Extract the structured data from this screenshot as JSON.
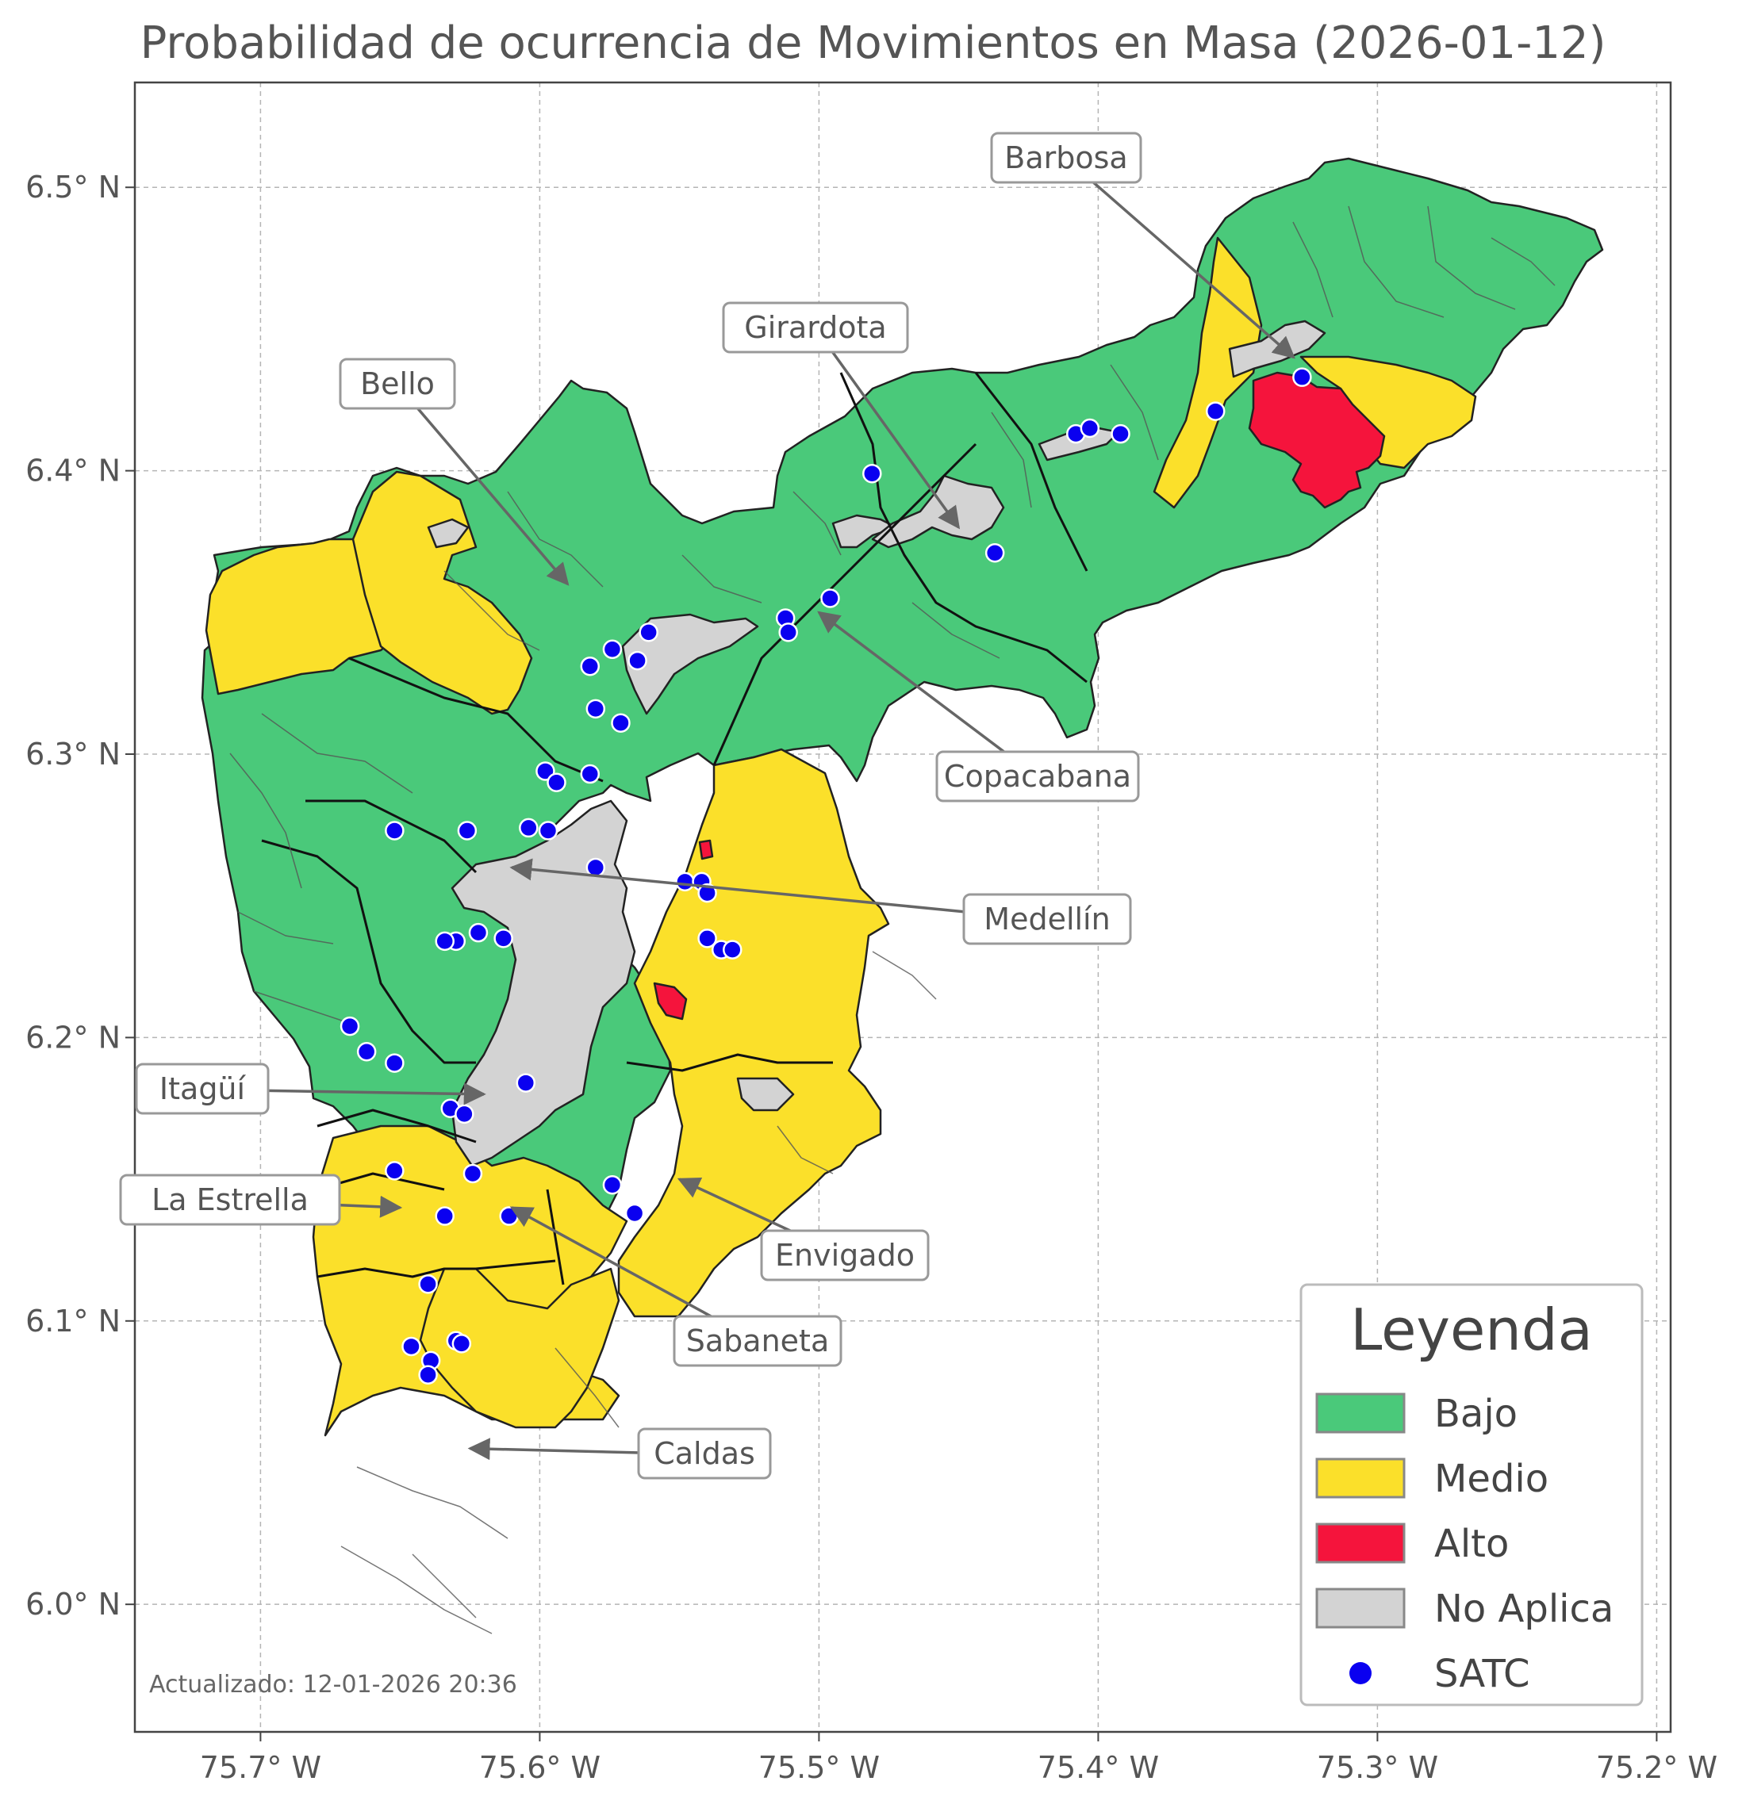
{
  "title": "Probabilidad de ocurrencia de Movimientos en Masa (2026-01-12)",
  "axes": {
    "x_ticks": [
      "75.7° W",
      "75.6° W",
      "75.5° W",
      "75.4° W",
      "75.3° W",
      "75.2° W"
    ],
    "y_ticks": [
      "6.5° N",
      "6.4° N",
      "6.3° N",
      "6.2° N",
      "6.1° N",
      "6.0° N"
    ],
    "lon_range": [
      -75.745,
      -75.195
    ],
    "lat_range": [
      5.955,
      6.537
    ],
    "grid": true
  },
  "municipalities": [
    {
      "name": "Barbosa",
      "lon": -75.33,
      "lat": 6.44
    },
    {
      "name": "Girardota",
      "lon": -75.45,
      "lat": 6.38
    },
    {
      "name": "Bello",
      "lon": -75.59,
      "lat": 6.36
    },
    {
      "name": "Copacabana",
      "lon": -75.5,
      "lat": 6.35
    },
    {
      "name": "Medellín",
      "lon": -75.61,
      "lat": 6.26
    },
    {
      "name": "Itagüí",
      "lon": -75.62,
      "lat": 6.18
    },
    {
      "name": "La Estrella",
      "lon": -75.65,
      "lat": 6.14
    },
    {
      "name": "Envigado",
      "lon": -75.55,
      "lat": 6.15
    },
    {
      "name": "Sabaneta",
      "lon": -75.61,
      "lat": 6.14
    },
    {
      "name": "Caldas",
      "lon": -75.625,
      "lat": 6.055
    }
  ],
  "legend": {
    "title": "Leyenda",
    "items": [
      {
        "label": "Bajo",
        "color": "#4ac97a",
        "kind": "patch"
      },
      {
        "label": "Medio",
        "color": "#fbe02a",
        "kind": "patch"
      },
      {
        "label": "Alto",
        "color": "#f5143c",
        "kind": "patch"
      },
      {
        "label": "No Aplica",
        "color": "#d3d3d3",
        "kind": "patch"
      },
      {
        "label": "SATC",
        "color": "#0a00f0",
        "kind": "marker"
      }
    ]
  },
  "satc_stations": [
    [
      -75.481,
      6.399
    ],
    [
      -75.437,
      6.371
    ],
    [
      -75.408,
      6.413
    ],
    [
      -75.403,
      6.415
    ],
    [
      -75.392,
      6.413
    ],
    [
      -75.358,
      6.421
    ],
    [
      -75.327,
      6.433
    ],
    [
      -75.512,
      6.348
    ],
    [
      -75.511,
      6.343
    ],
    [
      -75.496,
      6.355
    ],
    [
      -75.561,
      6.343
    ],
    [
      -75.574,
      6.337
    ],
    [
      -75.565,
      6.333
    ],
    [
      -75.582,
      6.331
    ],
    [
      -75.58,
      6.316
    ],
    [
      -75.571,
      6.311
    ],
    [
      -75.598,
      6.294
    ],
    [
      -75.594,
      6.29
    ],
    [
      -75.582,
      6.293
    ],
    [
      -75.652,
      6.273
    ],
    [
      -75.626,
      6.273
    ],
    [
      -75.604,
      6.274
    ],
    [
      -75.597,
      6.273
    ],
    [
      -75.58,
      6.26
    ],
    [
      -75.548,
      6.255
    ],
    [
      -75.542,
      6.255
    ],
    [
      -75.54,
      6.251
    ],
    [
      -75.622,
      6.237
    ],
    [
      -75.63,
      6.234
    ],
    [
      -75.634,
      6.234
    ],
    [
      -75.613,
      6.235
    ],
    [
      -75.54,
      6.235
    ],
    [
      -75.535,
      6.231
    ],
    [
      -75.531,
      6.231
    ],
    [
      -75.668,
      6.204
    ],
    [
      -75.662,
      6.195
    ],
    [
      -75.652,
      6.191
    ],
    [
      -75.605,
      6.184
    ],
    [
      -75.632,
      6.175
    ],
    [
      -75.627,
      6.173
    ],
    [
      -75.624,
      6.152
    ],
    [
      -75.652,
      6.153
    ],
    [
      -75.574,
      6.148
    ],
    [
      -75.566,
      6.138
    ],
    [
      -75.611,
      6.137
    ],
    [
      -75.634,
      6.137
    ],
    [
      -75.64,
      6.113
    ],
    [
      -75.646,
      6.091
    ],
    [
      -75.63,
      6.093
    ],
    [
      -75.628,
      6.092
    ],
    [
      -75.639,
      6.086
    ],
    [
      -75.64,
      6.081
    ]
  ],
  "updated": "Actualizado: 12-01-2026 20:36"
}
